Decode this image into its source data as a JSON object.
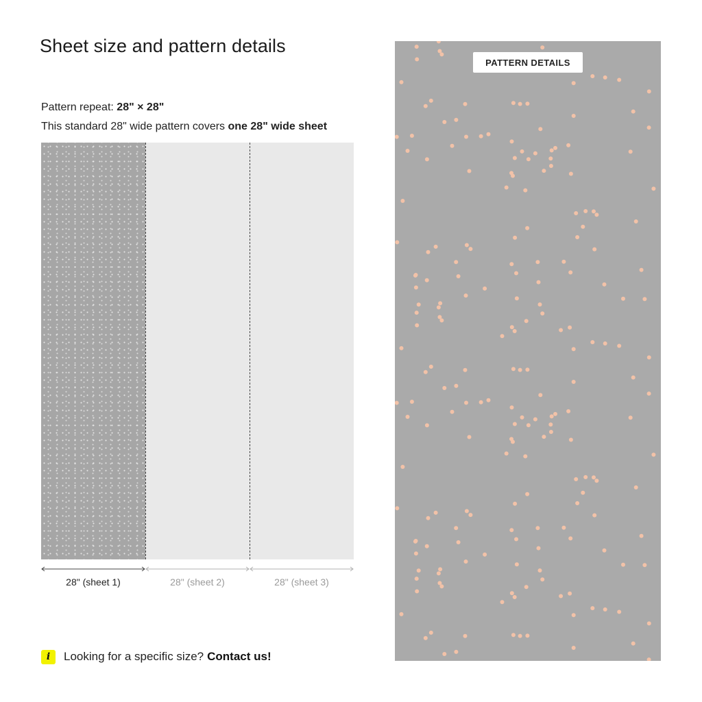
{
  "header": {
    "title": "Sheet size and pattern details"
  },
  "info": {
    "repeat_label": "Pattern repeat:",
    "repeat_value": "28\" × 28\"",
    "covers_prefix": "This standard 28\" wide pattern covers",
    "covers_bold": "one 28\" wide sheet"
  },
  "sheets": [
    {
      "label": "28\" (sheet 1)",
      "active": true
    },
    {
      "label": "28\" (sheet 2)",
      "active": false
    },
    {
      "label": "28\" (sheet 3)",
      "active": false
    }
  ],
  "contact": {
    "icon": "info-icon",
    "icon_glyph": "i",
    "text": "Looking for a specific size?",
    "link": "Contact us!"
  },
  "pattern": {
    "badge": "PATTERN DETAILS",
    "background_color": "#aaaaaa",
    "dot_color": "#f2c2a8"
  },
  "colors": {
    "sheet_active": "#a6a6a6",
    "sheet_inactive": "#e9e9e9",
    "icon_background": "#f2f200"
  }
}
